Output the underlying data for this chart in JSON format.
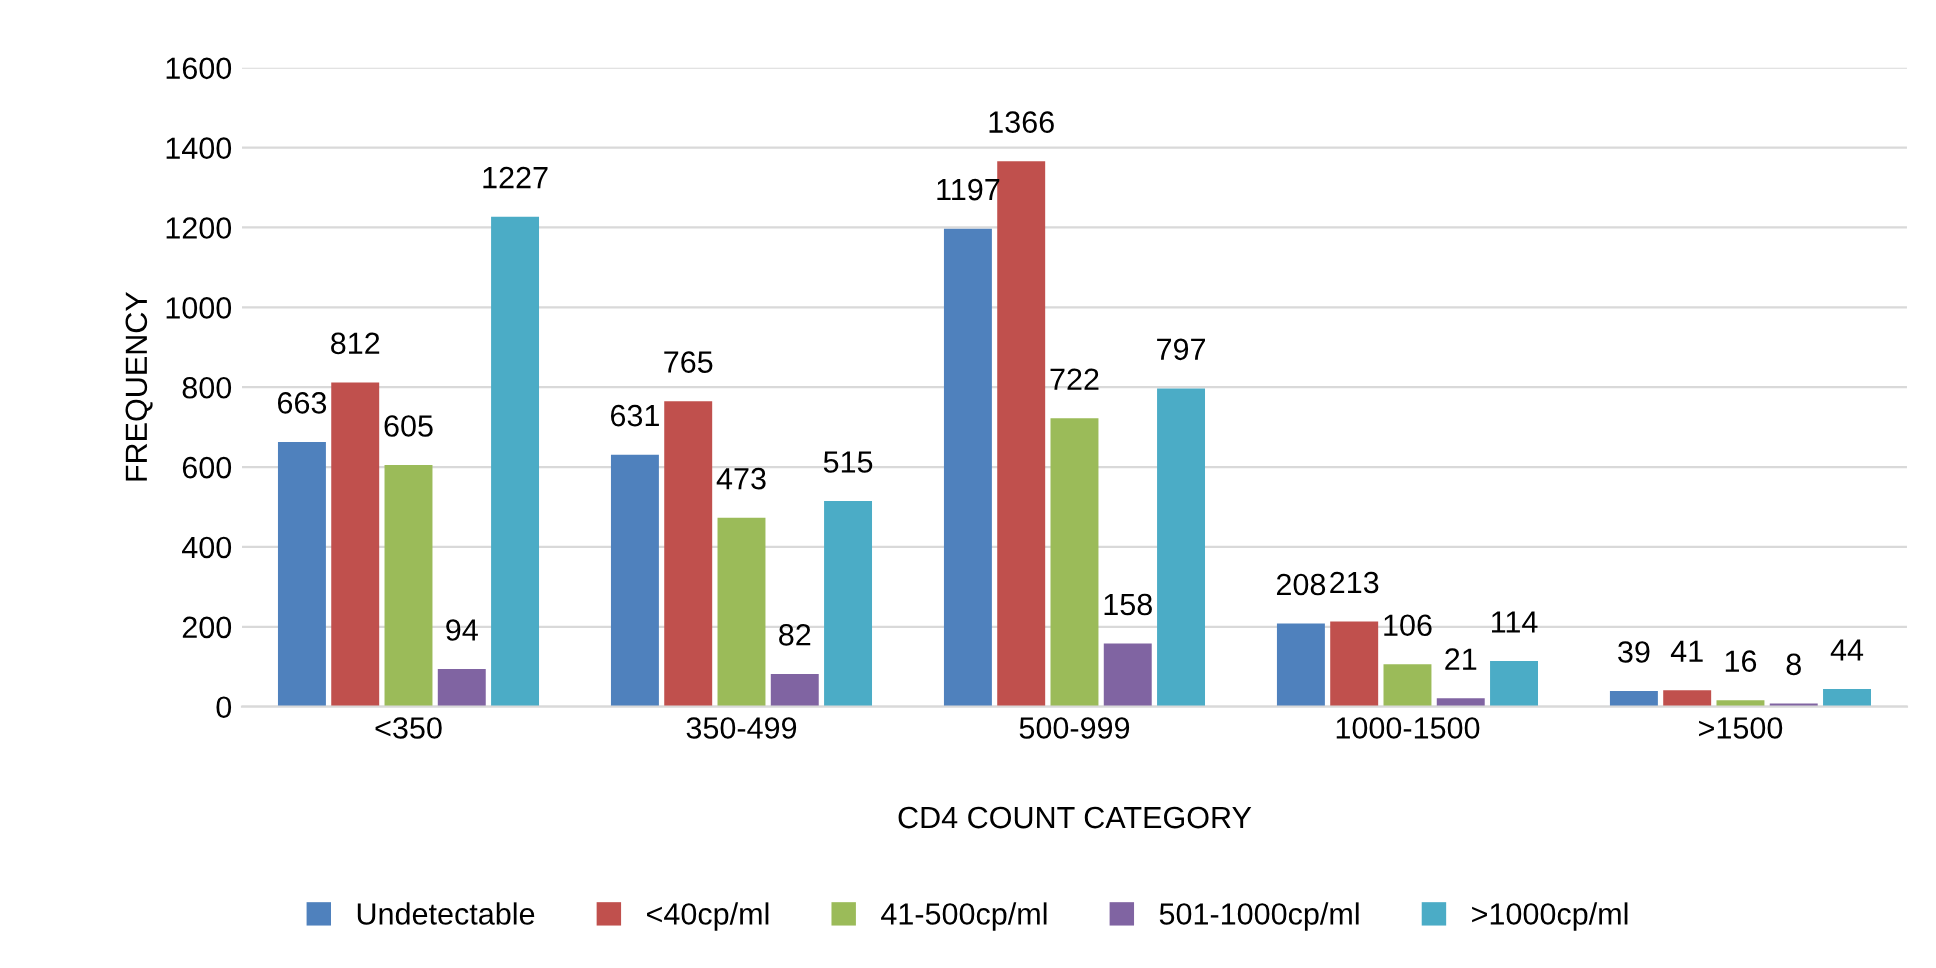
{
  "chart_data": {
    "type": "bar",
    "xlabel": "CD4 COUNT CATEGORY",
    "ylabel": "FREQUENCY",
    "categories": [
      "<350",
      "350-499",
      "500-999",
      "1000-1500",
      ">1500"
    ],
    "series": [
      {
        "name": "Undetectable",
        "color": "#4f81bd",
        "values": [
          663,
          631,
          1197,
          208,
          39
        ]
      },
      {
        "name": "<40cp/ml",
        "color": "#c0504d",
        "values": [
          812,
          765,
          1366,
          213,
          41
        ]
      },
      {
        "name": "41-500cp/ml",
        "color": "#9bbb59",
        "values": [
          605,
          473,
          722,
          106,
          16
        ]
      },
      {
        "name": "501-1000cp/ml",
        "color": "#8064a2",
        "values": [
          94,
          82,
          158,
          21,
          8
        ]
      },
      {
        "name": ">1000cp/ml",
        "color": "#4bacc6",
        "values": [
          1227,
          515,
          797,
          114,
          44
        ]
      }
    ],
    "ylim": [
      0,
      1600
    ],
    "yticks": [
      0,
      200,
      400,
      600,
      800,
      1000,
      1200,
      1400,
      1600
    ],
    "grid": "y",
    "legend": "bottom",
    "data_labels": true
  }
}
